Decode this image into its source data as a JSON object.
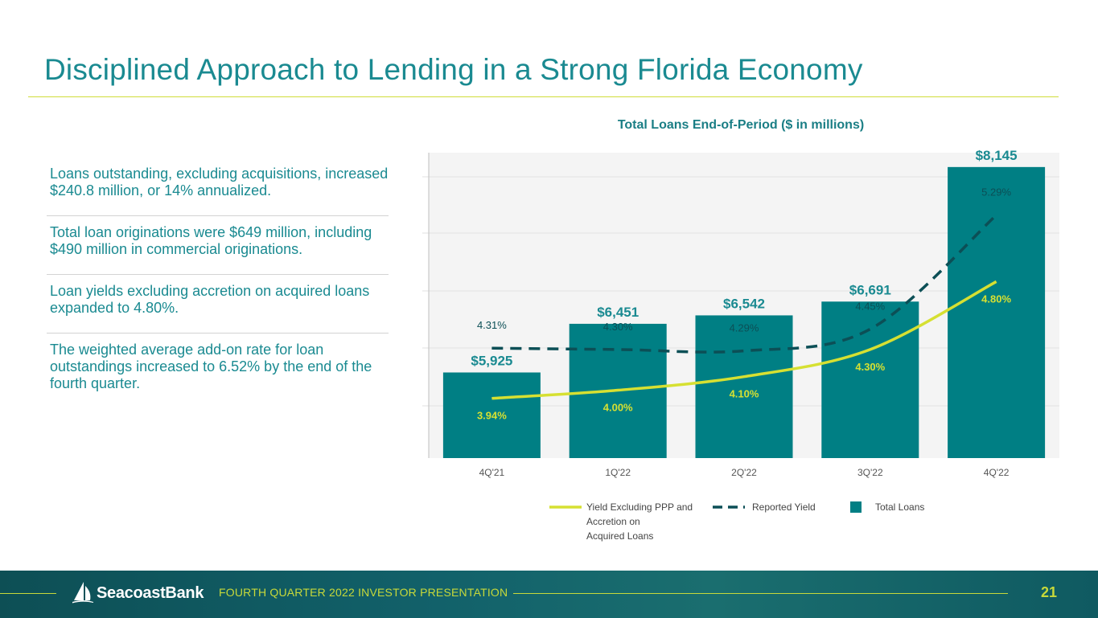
{
  "slide": {
    "title": "Disciplined Approach to Lending in a Strong Florida Economy"
  },
  "bullets": [
    "Loans outstanding, excluding acquisitions, increased $240.8 million, or 14% annualized.",
    "Total loan originations were $649 million, including $490 million in commercial originations.",
    "Loan yields excluding accretion on acquired loans expanded to 4.80%.",
    "The weighted average add-on rate for loan outstandings increased to 6.52% by the end of the fourth quarter."
  ],
  "chart_data": {
    "type": "bar",
    "title": "Total Loans End-of-Period ($ in millions)",
    "categories": [
      "4Q'21",
      "1Q'22",
      "2Q'22",
      "3Q'22",
      "4Q'22"
    ],
    "series": [
      {
        "name": "Total Loans",
        "type": "bar",
        "values": [
          5925,
          6451,
          6542,
          6691,
          8145
        ],
        "labels": [
          "$5,925",
          "$6,451",
          "$6,542",
          "$6,691",
          "$8,145"
        ]
      },
      {
        "name": "Yield Excluding PPP and Accretion on Acquired Loans",
        "type": "line",
        "style": "solid",
        "values": [
          3.94,
          4.0,
          4.1,
          4.3,
          4.8
        ],
        "labels": [
          "3.94%",
          "4.00%",
          "4.10%",
          "4.30%",
          "4.80%"
        ]
      },
      {
        "name": "Reported Yield",
        "type": "line",
        "style": "dashed",
        "values": [
          4.31,
          4.3,
          4.29,
          4.45,
          5.29
        ],
        "labels": [
          "4.31%",
          "4.30%",
          "4.29%",
          "4.45%",
          "5.29%"
        ]
      }
    ],
    "legend": {
      "position": "bottom",
      "items": [
        [
          "Yield Excluding PPP and",
          "Accretion on",
          "Acquired Loans"
        ],
        [
          "Reported Yield"
        ],
        [
          "Total Loans"
        ]
      ]
    },
    "colors": {
      "bars": "#007f84",
      "yield_ex_ppp": "#d6e032",
      "reported_yield": "#0c4f56",
      "bar_label": "#1a8a91",
      "plot_bg": "#f4f4f4"
    }
  },
  "footer": {
    "brand": "SeacoastBank",
    "subtitle": "FOURTH QUARTER 2022 INVESTOR PRESENTATION",
    "page_number": "21"
  }
}
